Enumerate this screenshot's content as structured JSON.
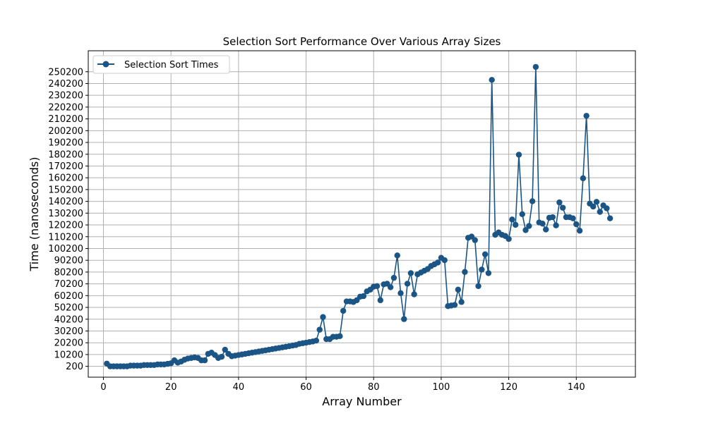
{
  "chart_data": {
    "type": "line",
    "title": "Selection Sort Performance Over Various Array Sizes",
    "xlabel": "Array Number",
    "ylabel": "Time (nanoseconds)",
    "xlim": [
      -4.5,
      157.5
    ],
    "ylim": [
      -9000,
      268000
    ],
    "xticks": [
      0,
      20,
      40,
      60,
      80,
      100,
      120,
      140
    ],
    "yticks": [
      200,
      10200,
      20200,
      30200,
      40200,
      50200,
      60200,
      70200,
      80200,
      90200,
      100200,
      110200,
      120200,
      130200,
      140200,
      150200,
      160200,
      170200,
      180200,
      190200,
      200200,
      210200,
      220200,
      230200,
      240200,
      250200
    ],
    "grid": true,
    "legend": "upper-left",
    "series": [
      {
        "name": "Selection Sort Times",
        "color": "#1a5585",
        "marker": "circle",
        "x": [
          1,
          2,
          3,
          4,
          5,
          6,
          7,
          8,
          9,
          10,
          11,
          12,
          13,
          14,
          15,
          16,
          17,
          18,
          19,
          20,
          21,
          22,
          23,
          24,
          25,
          26,
          27,
          28,
          29,
          30,
          31,
          32,
          33,
          34,
          35,
          36,
          37,
          38,
          39,
          40,
          41,
          42,
          43,
          44,
          45,
          46,
          47,
          48,
          49,
          50,
          51,
          52,
          53,
          54,
          55,
          56,
          57,
          58,
          59,
          60,
          61,
          62,
          63,
          64,
          65,
          66,
          67,
          68,
          69,
          70,
          71,
          72,
          73,
          74,
          75,
          76,
          77,
          78,
          79,
          80,
          81,
          82,
          83,
          84,
          85,
          86,
          87,
          88,
          89,
          90,
          91,
          92,
          93,
          94,
          95,
          96,
          97,
          98,
          99,
          100,
          101,
          102,
          103,
          104,
          105,
          106,
          107,
          108,
          109,
          110,
          111,
          112,
          113,
          114,
          115,
          116,
          117,
          118,
          119,
          120,
          121,
          122,
          123,
          124,
          125,
          126,
          127,
          128,
          129,
          130,
          131,
          132,
          133,
          134,
          135,
          136,
          137,
          138,
          139,
          140,
          141,
          142,
          143,
          144,
          145,
          146,
          147,
          148,
          149,
          150
        ],
        "y": [
          2500,
          200,
          200,
          200,
          200,
          200,
          200,
          800,
          800,
          800,
          800,
          1300,
          1300,
          1300,
          1300,
          1800,
          1800,
          1800,
          2300,
          2800,
          5300,
          3300,
          4300,
          5800,
          6800,
          7300,
          7800,
          7300,
          5300,
          5300,
          10800,
          11800,
          9800,
          7300,
          8300,
          14300,
          10800,
          8800,
          9300,
          9800,
          10300,
          10800,
          11300,
          11800,
          12300,
          12800,
          13300,
          13800,
          14300,
          14800,
          15300,
          15800,
          16300,
          16800,
          17300,
          17800,
          18300,
          19300,
          19800,
          20300,
          20800,
          21300,
          22000,
          31300,
          42000,
          23300,
          23300,
          25300,
          25300,
          25800,
          47300,
          55300,
          55300,
          54800,
          56300,
          59300,
          59800,
          63800,
          65300,
          67800,
          68300,
          56300,
          69800,
          70300,
          67300,
          75300,
          94300,
          62300,
          40300,
          70300,
          79300,
          61300,
          78300,
          79800,
          81300,
          82800,
          85300,
          86800,
          88300,
          92300,
          90300,
          51300,
          51800,
          52300,
          65300,
          54800,
          80300,
          109300,
          110300,
          107300,
          68300,
          82300,
          95300,
          79300,
          243300,
          111800,
          113800,
          111800,
          110800,
          108300,
          124800,
          120300,
          179800,
          129300,
          115800,
          119300,
          140300,
          254300,
          122300,
          121300,
          116300,
          126300,
          126800,
          119800,
          139300,
          134800,
          126800,
          126800,
          125800,
          120800,
          115300,
          159800,
          212800,
          138300,
          135800,
          139800,
          131300,
          136800,
          134300,
          125800
        ]
      }
    ]
  }
}
